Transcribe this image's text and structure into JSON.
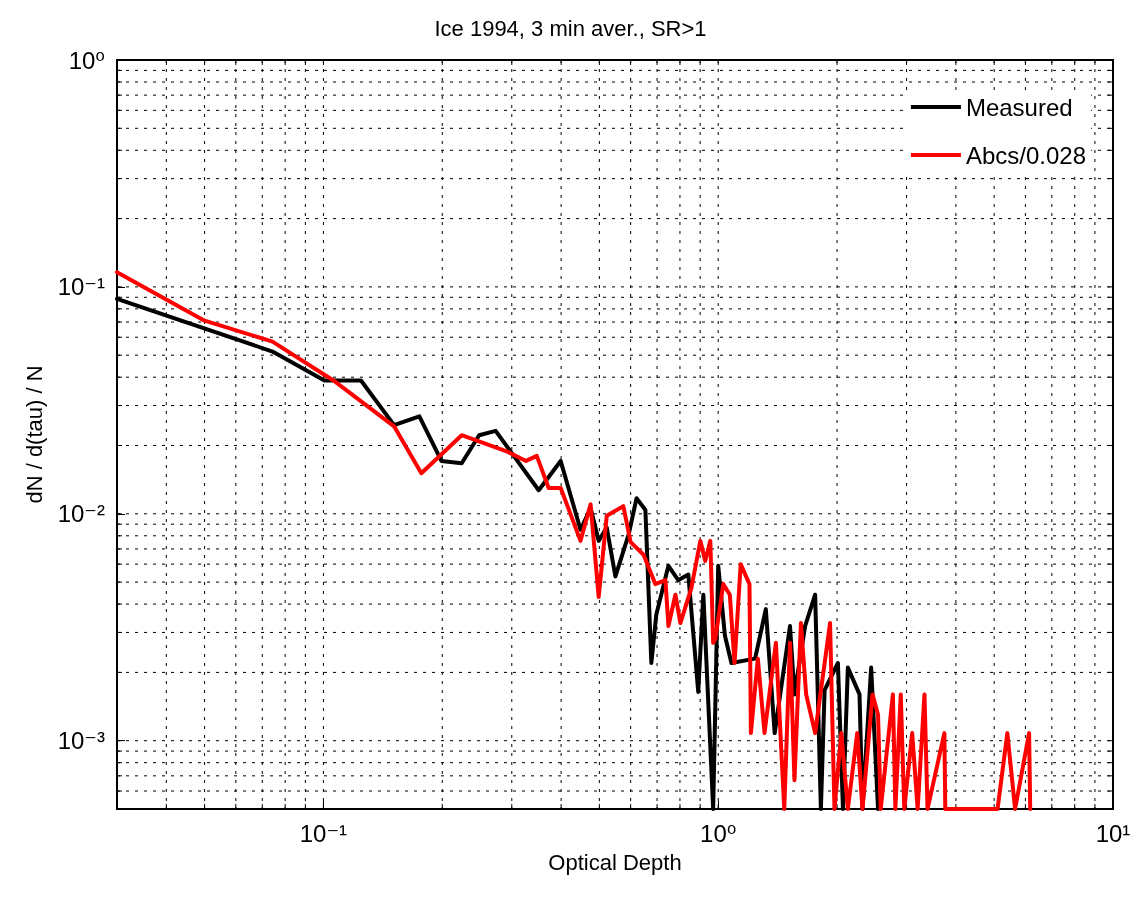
{
  "chart_data": {
    "type": "line",
    "title": "Ice 1994, 3 min aver., SR>1",
    "xlabel": "Optical Depth",
    "ylabel": "dN / d(tau) / N",
    "log": "xy",
    "grid": true,
    "legend": "top right",
    "line_style": "solid",
    "marker": "none",
    "xlim": [
      0.03,
      10
    ],
    "ylim": [
      0.0005,
      1
    ],
    "xticks": [
      {
        "value": 0.03,
        "label": null
      },
      {
        "value": 0.04,
        "label": null
      },
      {
        "value": 0.05,
        "label": null
      },
      {
        "value": 0.06,
        "label": null
      },
      {
        "value": 0.07,
        "label": null
      },
      {
        "value": 0.08,
        "label": null
      },
      {
        "value": 0.09,
        "label": null
      },
      {
        "value": 0.1,
        "label": "10⁻¹"
      },
      {
        "value": 0.2,
        "label": null
      },
      {
        "value": 0.3,
        "label": null
      },
      {
        "value": 0.4,
        "label": null
      },
      {
        "value": 0.5,
        "label": null
      },
      {
        "value": 0.6,
        "label": null
      },
      {
        "value": 0.7,
        "label": null
      },
      {
        "value": 0.8,
        "label": null
      },
      {
        "value": 0.9,
        "label": null
      },
      {
        "value": 1,
        "label": "10⁰"
      },
      {
        "value": 2,
        "label": null
      },
      {
        "value": 3,
        "label": null
      },
      {
        "value": 4,
        "label": null
      },
      {
        "value": 5,
        "label": null
      },
      {
        "value": 6,
        "label": null
      },
      {
        "value": 7,
        "label": null
      },
      {
        "value": 8,
        "label": null
      },
      {
        "value": 9,
        "label": null
      },
      {
        "value": 10,
        "label": "10¹"
      }
    ],
    "yticks": [
      {
        "value": 0.0005,
        "label": null
      },
      {
        "value": 0.0006,
        "label": null
      },
      {
        "value": 0.0007,
        "label": null
      },
      {
        "value": 0.0008,
        "label": null
      },
      {
        "value": 0.0009,
        "label": null
      },
      {
        "value": 0.001,
        "label": "10⁻³"
      },
      {
        "value": 0.002,
        "label": null
      },
      {
        "value": 0.003,
        "label": null
      },
      {
        "value": 0.004,
        "label": null
      },
      {
        "value": 0.005,
        "label": null
      },
      {
        "value": 0.006,
        "label": null
      },
      {
        "value": 0.007,
        "label": null
      },
      {
        "value": 0.008,
        "label": null
      },
      {
        "value": 0.009,
        "label": null
      },
      {
        "value": 0.01,
        "label": "10⁻²"
      },
      {
        "value": 0.02,
        "label": null
      },
      {
        "value": 0.03,
        "label": null
      },
      {
        "value": 0.04,
        "label": null
      },
      {
        "value": 0.05,
        "label": null
      },
      {
        "value": 0.06,
        "label": null
      },
      {
        "value": 0.07,
        "label": null
      },
      {
        "value": 0.08,
        "label": null
      },
      {
        "value": 0.09,
        "label": null
      },
      {
        "value": 0.1,
        "label": "10⁻¹"
      },
      {
        "value": 0.2,
        "label": null
      },
      {
        "value": 0.3,
        "label": null
      },
      {
        "value": 0.4,
        "label": null
      },
      {
        "value": 0.5,
        "label": null
      },
      {
        "value": 0.6,
        "label": null
      },
      {
        "value": 0.7,
        "label": null
      },
      {
        "value": 0.8,
        "label": null
      },
      {
        "value": 0.9,
        "label": null
      },
      {
        "value": 1,
        "label": "10⁰"
      }
    ],
    "series": [
      {
        "name": "Measured",
        "color": "#000000",
        "x": [
          0.03,
          0.0743,
          0.1006,
          0.1245,
          0.151,
          0.175,
          0.199,
          0.224,
          0.248,
          0.273,
          0.351,
          0.399,
          0.448,
          0.475,
          0.498,
          0.522,
          0.549,
          0.593,
          0.621,
          0.654,
          0.677,
          0.697,
          0.748,
          0.792,
          0.84,
          0.89,
          0.917,
          0.971,
          1.0,
          1.04,
          1.08,
          1.24,
          1.32,
          1.39,
          1.52,
          1.56,
          1.66,
          1.76,
          1.82,
          1.86,
          2.01,
          2.07,
          2.13,
          2.28,
          2.32,
          2.44,
          2.54
        ],
        "values": [
          0.0886,
          0.0519,
          0.0387,
          0.0387,
          0.0246,
          0.0269,
          0.0171,
          0.0167,
          0.0222,
          0.0232,
          0.0127,
          0.0171,
          0.0085,
          0.0106,
          0.0076,
          0.0087,
          0.0053,
          0.0081,
          0.0117,
          0.0104,
          0.0022,
          0.0036,
          0.0059,
          0.0051,
          0.0054,
          0.00164,
          0.0044,
          0.0005,
          0.0059,
          0.0029,
          0.0022,
          0.0023,
          0.0038,
          0.00108,
          0.0032,
          0.0016,
          0.0032,
          0.0044,
          0.0005,
          0.00167,
          0.0022,
          0.0005,
          0.0021,
          0.0016,
          0.0005,
          0.0021,
          0.0005
        ]
      },
      {
        "name": "Abcs/0.028",
        "color": "#ff0000",
        "x": [
          0.03,
          0.05,
          0.0743,
          0.106,
          0.151,
          0.177,
          0.224,
          0.29,
          0.326,
          0.347,
          0.372,
          0.399,
          0.448,
          0.475,
          0.498,
          0.522,
          0.575,
          0.6,
          0.647,
          0.693,
          0.735,
          0.748,
          0.779,
          0.802,
          0.855,
          0.901,
          0.927,
          0.955,
          0.971,
          0.983,
          1.03,
          1.07,
          1.1,
          1.14,
          1.2,
          1.21,
          1.26,
          1.31,
          1.4,
          1.47,
          1.52,
          1.56,
          1.62,
          1.67,
          1.76,
          1.92,
          1.97,
          2.05,
          2.13,
          2.25,
          2.32,
          2.46,
          2.54,
          2.58,
          2.77,
          2.81,
          2.9,
          2.96,
          3.1,
          3.2,
          3.33,
          3.39,
          3.74,
          3.76,
          4.5,
          5.1,
          5.4,
          5.65,
          6.13,
          6.17
        ],
        "values": [
          0.116,
          0.071,
          0.0574,
          0.0387,
          0.0243,
          0.0151,
          0.0222,
          0.0189,
          0.0171,
          0.018,
          0.013,
          0.013,
          0.0076,
          0.011,
          0.0043,
          0.0098,
          0.0108,
          0.0075,
          0.0066,
          0.0049,
          0.0051,
          0.0032,
          0.0044,
          0.0033,
          0.0047,
          0.0076,
          0.0062,
          0.0076,
          0.0027,
          0.0028,
          0.0049,
          0.0044,
          0.0022,
          0.006,
          0.0049,
          0.00108,
          0.0023,
          0.00108,
          0.0027,
          0.0005,
          0.0027,
          0.00067,
          0.0033,
          0.0016,
          0.00108,
          0.0033,
          0.0005,
          0.00108,
          0.0005,
          0.00108,
          0.0005,
          0.0016,
          0.0013,
          0.0005,
          0.0016,
          0.0005,
          0.0016,
          0.0005,
          0.00108,
          0.0005,
          0.0016,
          0.0005,
          0.00108,
          0.0005,
          0.0005,
          0.0005,
          0.00108,
          0.0005,
          0.00108,
          0.0005
        ]
      }
    ]
  }
}
